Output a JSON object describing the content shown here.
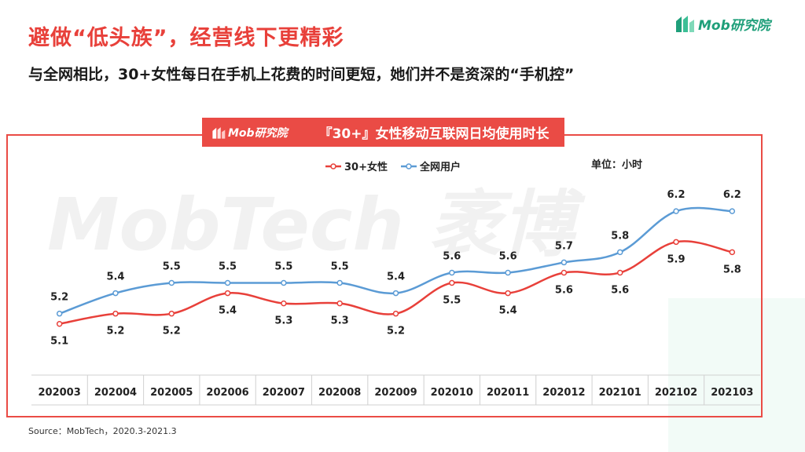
{
  "page": {
    "title": "避做“低头族”，经营线下更精彩",
    "subtitle": "与全网相比，30+女性每日在手机上花费的时间更短，她们并不是资深的“手机控”",
    "brand": "Mob研究院",
    "source": "Source：MobTech，2020.3-2021.3",
    "watermark": "MobTech 袤博"
  },
  "chart_data": {
    "type": "line",
    "title": "『30+』女性移动互联网日均使用时长",
    "unit_label": "单位：小时",
    "legend_position": "top-center",
    "categories": [
      "202003",
      "202004",
      "202005",
      "202006",
      "202007",
      "202008",
      "202009",
      "202010",
      "202011",
      "202012",
      "202101",
      "202102",
      "202103"
    ],
    "series": [
      {
        "name": "30+女性",
        "color": "#e8403a",
        "values": [
          5.1,
          5.2,
          5.2,
          5.4,
          5.3,
          5.3,
          5.2,
          5.5,
          5.4,
          5.6,
          5.6,
          5.9,
          5.8
        ]
      },
      {
        "name": "全网用户",
        "color": "#5b9bd5",
        "values": [
          5.2,
          5.4,
          5.5,
          5.5,
          5.5,
          5.5,
          5.4,
          5.6,
          5.6,
          5.7,
          5.8,
          6.2,
          6.2
        ]
      }
    ],
    "ylim": [
      4.6,
      6.5
    ]
  }
}
